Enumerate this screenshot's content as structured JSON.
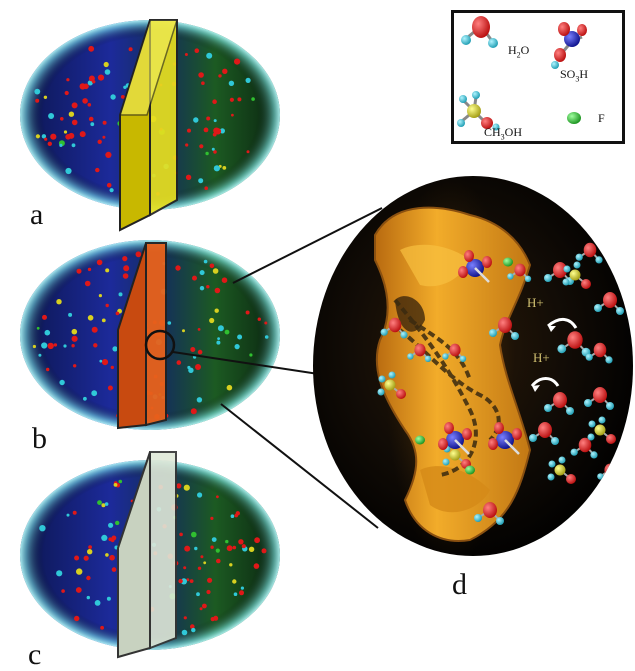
{
  "panels": [
    {
      "label": "a",
      "membrane_color": "#e8e020"
    },
    {
      "label": "b",
      "membrane_color": "#e8621c"
    },
    {
      "label": "c",
      "membrane_color": "#dfe8d8"
    },
    {
      "label": "d"
    }
  ],
  "legend": {
    "items": [
      {
        "name": "H2O",
        "main": "H",
        "sub": "2",
        "rest": "O",
        "icon": "water-molecule-icon"
      },
      {
        "name": "SO3H",
        "main": "SO",
        "sub": "3",
        "rest": "H",
        "icon": "sulfonic-acid-icon"
      },
      {
        "name": "CH3OH",
        "main": "CH",
        "sub": "3",
        "rest": "OH",
        "icon": "methanol-molecule-icon"
      },
      {
        "name": "F",
        "main": "F",
        "sub": "",
        "rest": "",
        "icon": "fluorine-atom-icon"
      }
    ]
  },
  "zoom": {
    "proton_labels": [
      "H+",
      "H+"
    ]
  },
  "colors": {
    "background": "#ffffff",
    "methanol_side": "#1c2a9a",
    "water_side": "#1c5a22",
    "cell_rim": "#7ee8e8",
    "channel": "#e8a020",
    "oxygen": "#e01818",
    "hydrogen": "#30c8d8",
    "sulfur": "#1a22c0",
    "carbon": "#d8d020",
    "fluorine": "#30c030"
  }
}
